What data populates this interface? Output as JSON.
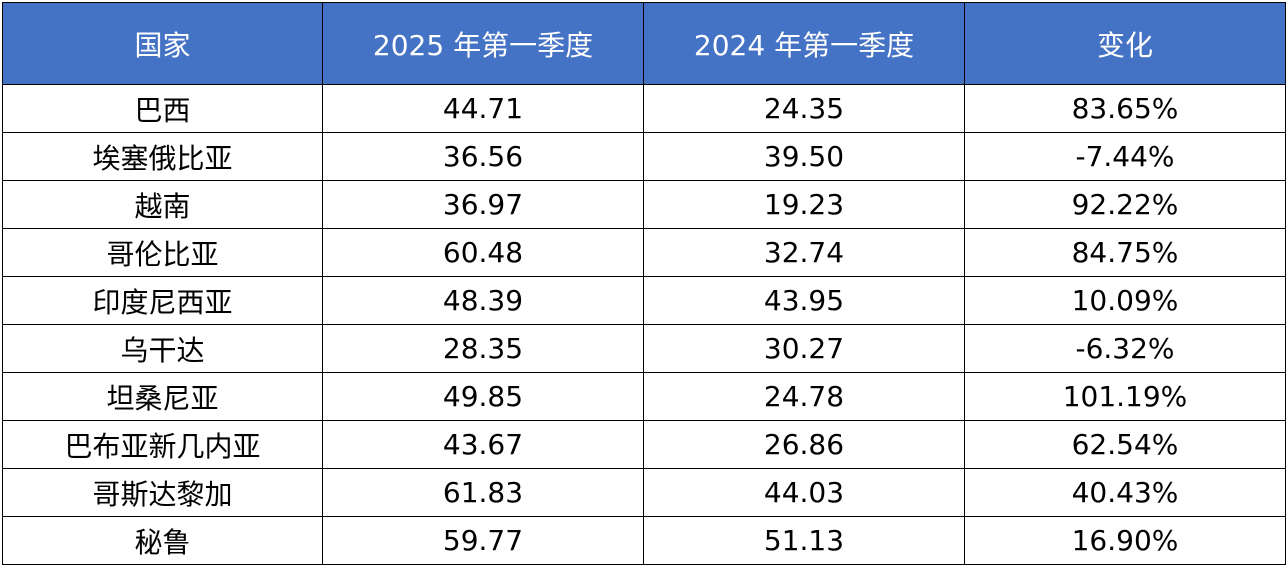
{
  "chart_data": {
    "type": "table",
    "header_color": "#4472c4",
    "columns": [
      "国家",
      "2025 年第一季度",
      "2024 年第一季度",
      "变化"
    ],
    "rows": [
      [
        "巴西",
        "44.71",
        "24.35",
        "83.65%"
      ],
      [
        "埃塞俄比亚",
        "36.56",
        "39.50",
        "-7.44%"
      ],
      [
        "越南",
        "36.97",
        "19.23",
        "92.22%"
      ],
      [
        "哥伦比亚",
        "60.48",
        "32.74",
        "84.75%"
      ],
      [
        "印度尼西亚",
        "48.39",
        "43.95",
        "10.09%"
      ],
      [
        "乌干达",
        "28.35",
        "30.27",
        "-6.32%"
      ],
      [
        "坦桑尼亚",
        "49.85",
        "24.78",
        "101.19%"
      ],
      [
        "巴布亚新几内亚",
        "43.67",
        "26.86",
        "62.54%"
      ],
      [
        "哥斯达黎加",
        "61.83",
        "44.03",
        "40.43%"
      ],
      [
        "秘鲁",
        "59.77",
        "51.13",
        "16.90%"
      ]
    ]
  }
}
